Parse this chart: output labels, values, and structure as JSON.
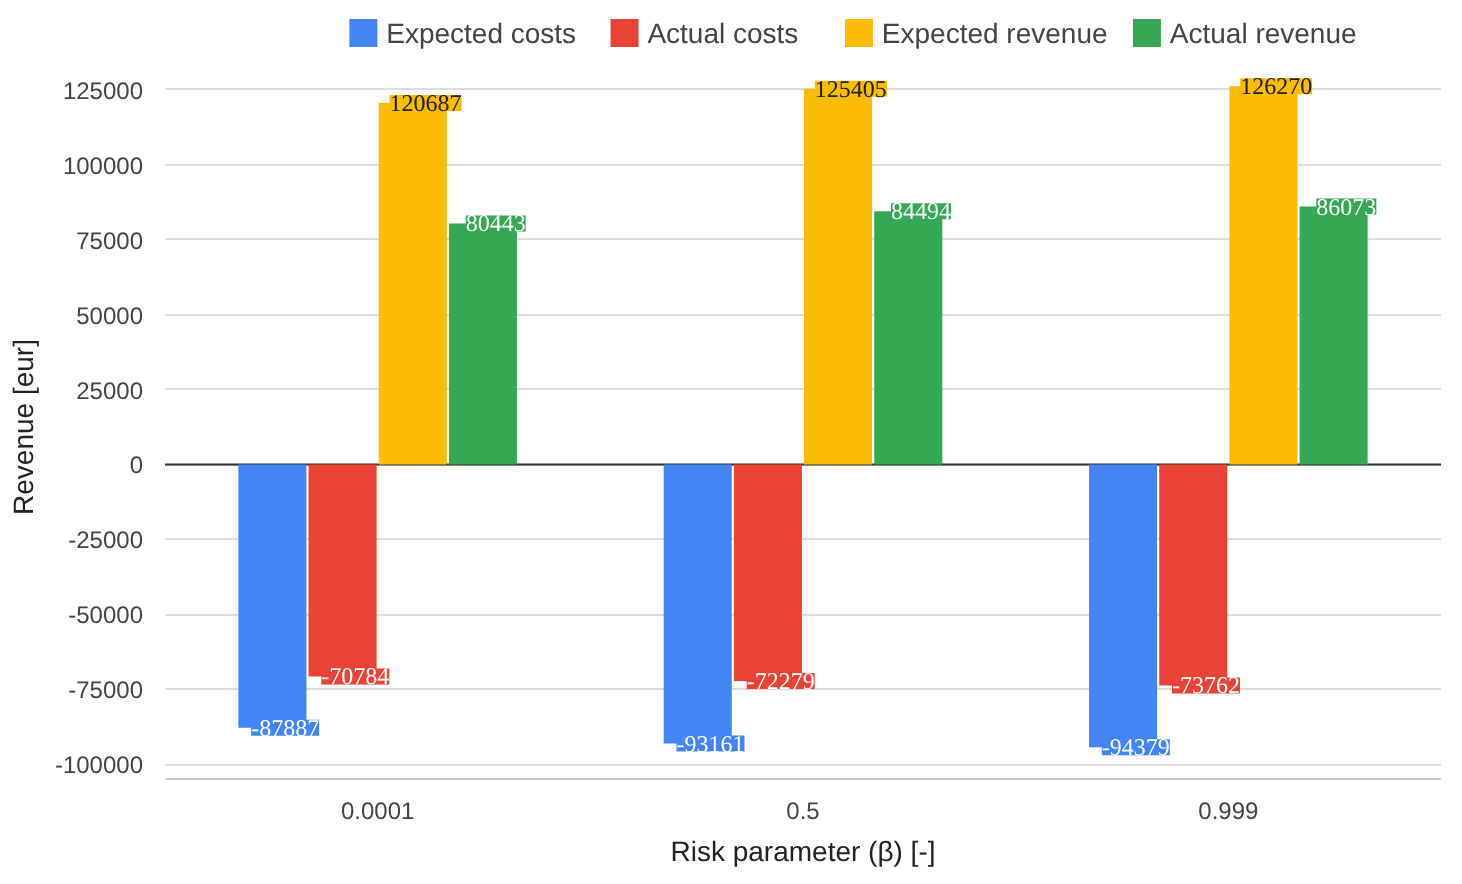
{
  "chart_data": {
    "type": "bar",
    "xlabel": "Risk parameter (β) [-]",
    "ylabel": "Revenue [eur]",
    "categories": [
      "0.0001",
      "0.5",
      "0.999"
    ],
    "series": [
      {
        "name": "Expected costs",
        "color": "#4285f4",
        "values": [
          -87887,
          -93161,
          -94379
        ]
      },
      {
        "name": "Actual costs",
        "color": "#ea4335",
        "values": [
          -70784,
          -72279,
          -73762
        ]
      },
      {
        "name": "Expected revenue",
        "color": "#fbbc04",
        "values": [
          120687,
          125405,
          126270
        ]
      },
      {
        "name": "Actual revenue",
        "color": "#34a853",
        "values": [
          80443,
          84494,
          86073
        ]
      }
    ],
    "ylim": [
      -105000,
      130000
    ],
    "yticks": [
      -100000,
      -75000,
      -50000,
      -25000,
      0,
      25000,
      50000,
      75000,
      100000,
      125000
    ],
    "grid": "y",
    "legend": "top",
    "data_labels": true
  }
}
